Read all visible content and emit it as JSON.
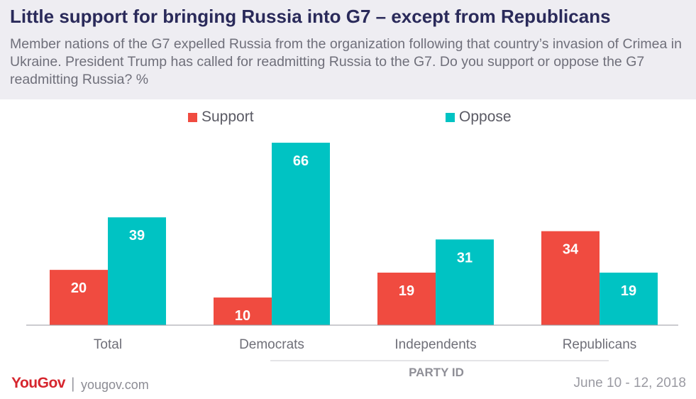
{
  "header": {
    "title": "Little support for bringing Russia into G7 – except from Republicans",
    "subtitle": "Member nations of the G7 expelled Russia from the organization following that country’s invasion of Crimea in Ukraine. President Trump has called for readmitting Russia to the G7. Do you support or oppose the G7 readmitting Russia? %"
  },
  "footer": {
    "logo": "YouGov",
    "separator": "|",
    "url": "yougov.com",
    "date": "June 10 - 12, 2018"
  },
  "chart_data": {
    "type": "bar",
    "title": "Little support for bringing Russia into G7 – except from Republicans",
    "categories": [
      "Total",
      "Democrats",
      "Independents",
      "Republicans"
    ],
    "series": [
      {
        "name": "Support",
        "values": [
          20,
          10,
          19,
          34
        ],
        "color": "#f04b40"
      },
      {
        "name": "Oppose",
        "values": [
          39,
          66,
          31,
          19
        ],
        "color": "#00c3c3"
      }
    ],
    "group_label": "PARTY ID",
    "group_categories": [
      "Democrats",
      "Independents",
      "Republicans"
    ],
    "ylim": [
      0,
      66
    ],
    "grid": false,
    "legend_position": "top",
    "data_labels": true
  }
}
